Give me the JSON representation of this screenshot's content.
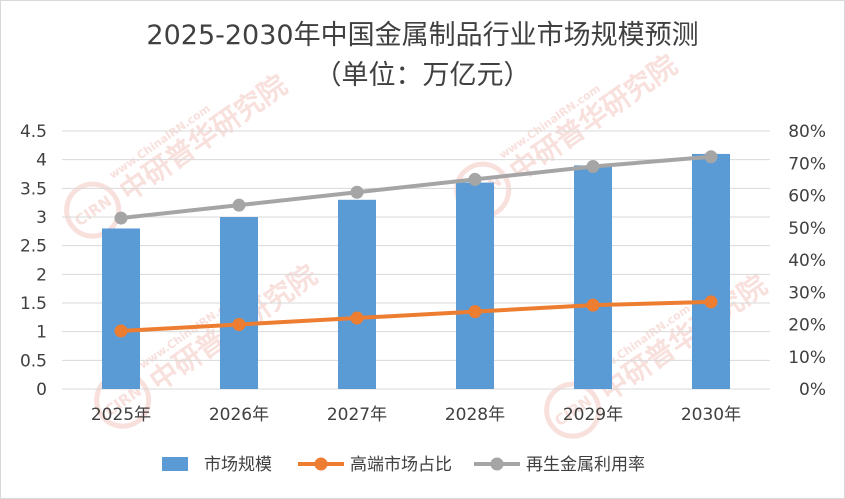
{
  "chart_data": {
    "type": "bar",
    "title_line1": "2025-2030年中国金属制品行业市场规模预测",
    "title_line2": "（单位：万亿元）",
    "categories": [
      "2025年",
      "2026年",
      "2027年",
      "2028年",
      "2029年",
      "2030年"
    ],
    "y_left": {
      "ylim": [
        0,
        4.5
      ],
      "ticks": [
        "0",
        "0.5",
        "1",
        "1.5",
        "2",
        "2.5",
        "3",
        "3.5",
        "4",
        "4.5"
      ]
    },
    "y_right": {
      "ylim": [
        0,
        80
      ],
      "ticks": [
        "0%",
        "10%",
        "20%",
        "30%",
        "40%",
        "50%",
        "60%",
        "70%",
        "80%"
      ]
    },
    "series": [
      {
        "name": "市场规模",
        "kind": "bar",
        "axis": "left",
        "color": "#5b9bd5",
        "values": [
          2.8,
          3.0,
          3.3,
          3.6,
          3.9,
          4.1
        ]
      },
      {
        "name": "高端市场占比",
        "kind": "line",
        "axis": "right",
        "color": "#ed7d31",
        "values": [
          18,
          20,
          22,
          24,
          26,
          27
        ]
      },
      {
        "name": "再生金属利用率",
        "kind": "line",
        "axis": "right",
        "color": "#a5a5a5",
        "values": [
          53,
          57,
          61,
          65,
          69,
          72
        ]
      }
    ],
    "grid": true,
    "legend": "bottom"
  },
  "watermark": {
    "brand_text": "中研普华研究院",
    "url_text": "www.ChinaIRN.com",
    "logo_text": "CIRN",
    "color": "#f4c7c3"
  }
}
